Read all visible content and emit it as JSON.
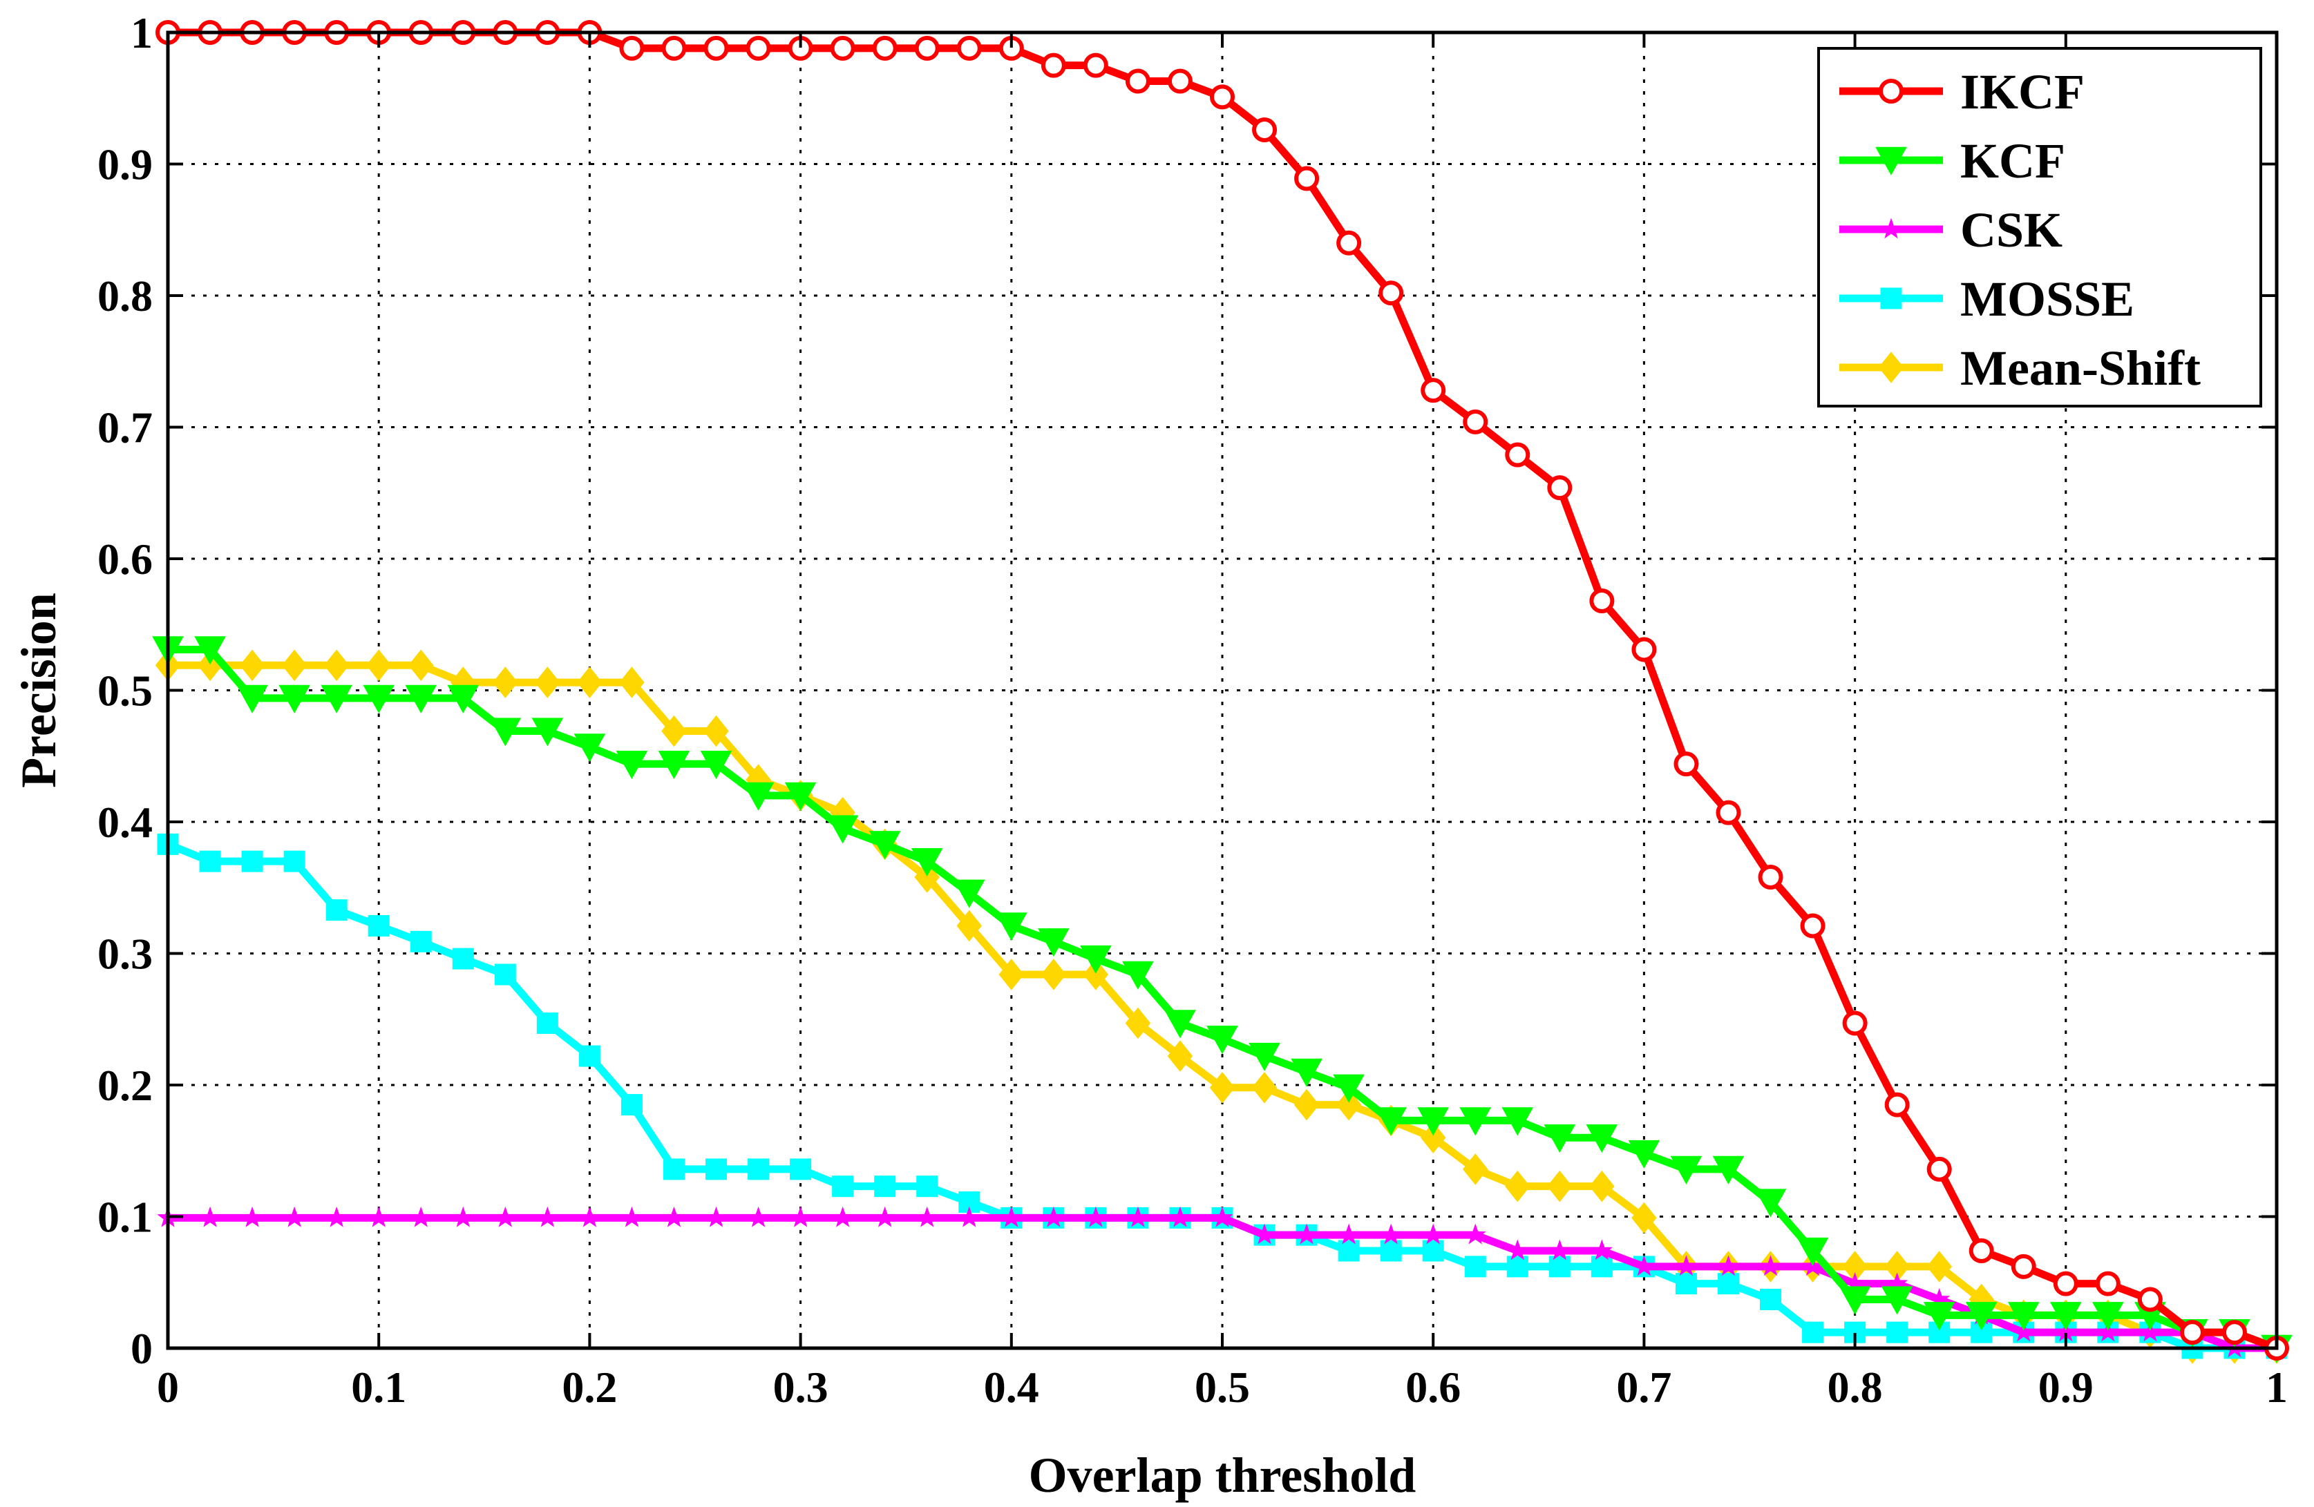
{
  "chart_data": {
    "type": "line",
    "title": "",
    "xlabel": "Overlap threshold",
    "ylabel": "Precision",
    "xlim": [
      0,
      1
    ],
    "ylim": [
      0,
      1
    ],
    "grid": true,
    "legend_position": "top-right",
    "x_ticks": [
      "0",
      "0.1",
      "0.2",
      "0.3",
      "0.4",
      "0.5",
      "0.6",
      "0.7",
      "0.8",
      "0.9",
      "1"
    ],
    "y_ticks": [
      "0",
      "0.1",
      "0.2",
      "0.3",
      "0.4",
      "0.5",
      "0.6",
      "0.7",
      "0.8",
      "0.9",
      "1"
    ],
    "x": [
      0,
      0.02,
      0.04,
      0.06,
      0.08,
      0.1,
      0.12,
      0.14,
      0.16,
      0.18,
      0.2,
      0.22,
      0.24,
      0.26,
      0.28,
      0.3,
      0.32,
      0.34,
      0.36,
      0.38,
      0.4,
      0.42,
      0.44,
      0.46,
      0.48,
      0.5,
      0.52,
      0.54,
      0.56,
      0.58,
      0.6,
      0.62,
      0.64,
      0.66,
      0.68,
      0.7,
      0.72,
      0.74,
      0.76,
      0.78,
      0.8,
      0.82,
      0.84,
      0.86,
      0.88,
      0.9,
      0.92,
      0.94,
      0.96,
      0.98,
      1.0
    ],
    "series": [
      {
        "name": "IKCF",
        "color": "#ff0000",
        "marker": "circle",
        "values": [
          1,
          1,
          1,
          1,
          1,
          1,
          1,
          1,
          1,
          1,
          1,
          0.988,
          0.988,
          0.988,
          0.988,
          0.988,
          0.988,
          0.988,
          0.988,
          0.988,
          0.988,
          0.975,
          0.975,
          0.963,
          0.963,
          0.951,
          0.926,
          0.889,
          0.84,
          0.802,
          0.728,
          0.704,
          0.679,
          0.654,
          0.568,
          0.531,
          0.444,
          0.407,
          0.358,
          0.321,
          0.247,
          0.185,
          0.136,
          0.074,
          0.062,
          0.049,
          0.049,
          0.037,
          0.012,
          0.012,
          0
        ]
      },
      {
        "name": "KCF",
        "color": "#00ff00",
        "marker": "triangle-down",
        "values": [
          0.531,
          0.531,
          0.494,
          0.494,
          0.494,
          0.494,
          0.494,
          0.494,
          0.469,
          0.469,
          0.457,
          0.444,
          0.444,
          0.444,
          0.42,
          0.42,
          0.395,
          0.383,
          0.37,
          0.346,
          0.321,
          0.309,
          0.296,
          0.284,
          0.247,
          0.235,
          0.222,
          0.21,
          0.198,
          0.173,
          0.173,
          0.173,
          0.173,
          0.16,
          0.16,
          0.148,
          0.136,
          0.136,
          0.111,
          0.074,
          0.037,
          0.037,
          0.025,
          0.025,
          0.025,
          0.025,
          0.025,
          0.025,
          0.012,
          0.012,
          0
        ]
      },
      {
        "name": "CSK",
        "color": "#ff00ff",
        "marker": "star",
        "values": [
          0.099,
          0.099,
          0.099,
          0.099,
          0.099,
          0.099,
          0.099,
          0.099,
          0.099,
          0.099,
          0.099,
          0.099,
          0.099,
          0.099,
          0.099,
          0.099,
          0.099,
          0.099,
          0.099,
          0.099,
          0.099,
          0.099,
          0.099,
          0.099,
          0.099,
          0.099,
          0.086,
          0.086,
          0.086,
          0.086,
          0.086,
          0.086,
          0.074,
          0.074,
          0.074,
          0.062,
          0.062,
          0.062,
          0.062,
          0.062,
          0.049,
          0.049,
          0.037,
          0.025,
          0.012,
          0.012,
          0.012,
          0.012,
          0.012,
          0,
          0
        ]
      },
      {
        "name": "MOSSE",
        "color": "#00ffff",
        "marker": "square",
        "values": [
          0.383,
          0.37,
          0.37,
          0.37,
          0.333,
          0.321,
          0.309,
          0.296,
          0.284,
          0.247,
          0.222,
          0.185,
          0.136,
          0.136,
          0.136,
          0.136,
          0.123,
          0.123,
          0.123,
          0.111,
          0.099,
          0.099,
          0.099,
          0.099,
          0.099,
          0.099,
          0.086,
          0.086,
          0.074,
          0.074,
          0.074,
          0.062,
          0.062,
          0.062,
          0.062,
          0.062,
          0.049,
          0.049,
          0.037,
          0.012,
          0.012,
          0.012,
          0.012,
          0.012,
          0.012,
          0.012,
          0.012,
          0.012,
          0,
          0,
          0
        ]
      },
      {
        "name": "Mean-Shift",
        "color": "#ffd700",
        "marker": "diamond",
        "values": [
          0.519,
          0.519,
          0.519,
          0.519,
          0.519,
          0.519,
          0.519,
          0.506,
          0.506,
          0.506,
          0.506,
          0.506,
          0.469,
          0.469,
          0.432,
          0.42,
          0.407,
          0.383,
          0.358,
          0.321,
          0.284,
          0.284,
          0.284,
          0.247,
          0.222,
          0.198,
          0.198,
          0.185,
          0.185,
          0.173,
          0.16,
          0.136,
          0.123,
          0.123,
          0.123,
          0.099,
          0.062,
          0.062,
          0.062,
          0.062,
          0.062,
          0.062,
          0.062,
          0.037,
          0.025,
          0.025,
          0.025,
          0.012,
          0,
          0,
          0
        ]
      }
    ]
  }
}
